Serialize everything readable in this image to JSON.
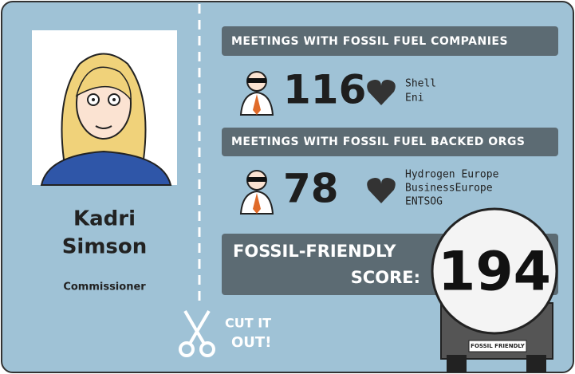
{
  "profile": {
    "name_lines": [
      "Kadri",
      "Simson"
    ],
    "role": "Commissioner"
  },
  "sections": [
    {
      "title": "MEETINGS WITH FOSSIL FUEL COMPANIES",
      "count": 116,
      "organisations": [
        "Shell",
        "Eni"
      ]
    },
    {
      "title": "MEETINGS WITH FOSSIL FUEL BACKED ORGS",
      "count": 78,
      "organisations": [
        "Hydrogen Europe",
        "BusinessEurope",
        "ENTSOG"
      ]
    }
  ],
  "score": {
    "label_lines": [
      "FOSSIL-FRIENDLY",
      "SCORE:"
    ],
    "value": 194,
    "truck_label": "FOSSIL FRIENDLY"
  },
  "cut_out": [
    "CUT IT",
    "OUT!"
  ]
}
